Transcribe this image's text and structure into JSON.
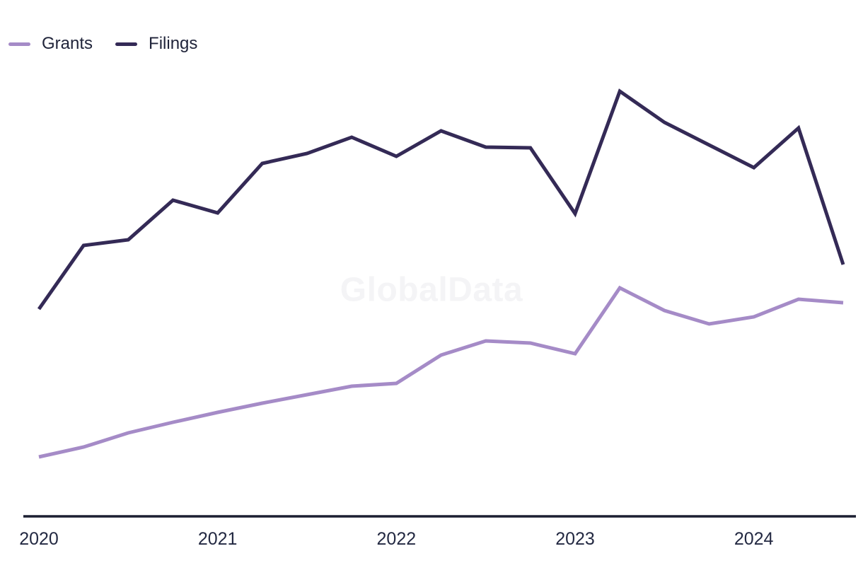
{
  "legend": {
    "items": [
      {
        "label": "Grants",
        "color": "#a58bc7"
      },
      {
        "label": "Filings",
        "color": "#342a56"
      }
    ]
  },
  "watermark": {
    "text": "GlobalData"
  },
  "axis": {
    "line_color": "#1b1f31",
    "tick_label_color": "#232942"
  },
  "chart_data": {
    "type": "line",
    "title": "",
    "xlabel": "",
    "ylabel": "",
    "grid": false,
    "legend_position": "top-left",
    "y_axis_visible": false,
    "value_note": "No y-axis shown in source; values are relative units estimated from line heights above the x-axis",
    "x": [
      "2020-Q1",
      "2020-Q2",
      "2020-Q3",
      "2020-Q4",
      "2021-Q1",
      "2021-Q2",
      "2021-Q3",
      "2021-Q4",
      "2022-Q1",
      "2022-Q2",
      "2022-Q3",
      "2022-Q4",
      "2023-Q1",
      "2023-Q2",
      "2023-Q3",
      "2023-Q4",
      "2024-Q1",
      "2024-Q2",
      "2024-Q3"
    ],
    "x_tick_labels": [
      "2020",
      "2021",
      "2022",
      "2023",
      "2024"
    ],
    "x_tick_indices": [
      0,
      4,
      8,
      12,
      16
    ],
    "ylim": [
      0,
      650
    ],
    "series": [
      {
        "name": "Grants",
        "color": "#a58bc7",
        "values": [
          84,
          98,
          118,
          133,
          147,
          160,
          172,
          184,
          188,
          228,
          248,
          245,
          230,
          323,
          291,
          272,
          282,
          307,
          302
        ]
      },
      {
        "name": "Filings",
        "color": "#342a56",
        "values": [
          293,
          383,
          391,
          447,
          429,
          499,
          513,
          536,
          509,
          545,
          522,
          521,
          428,
          601,
          557,
          525,
          493,
          549,
          356
        ]
      }
    ]
  }
}
